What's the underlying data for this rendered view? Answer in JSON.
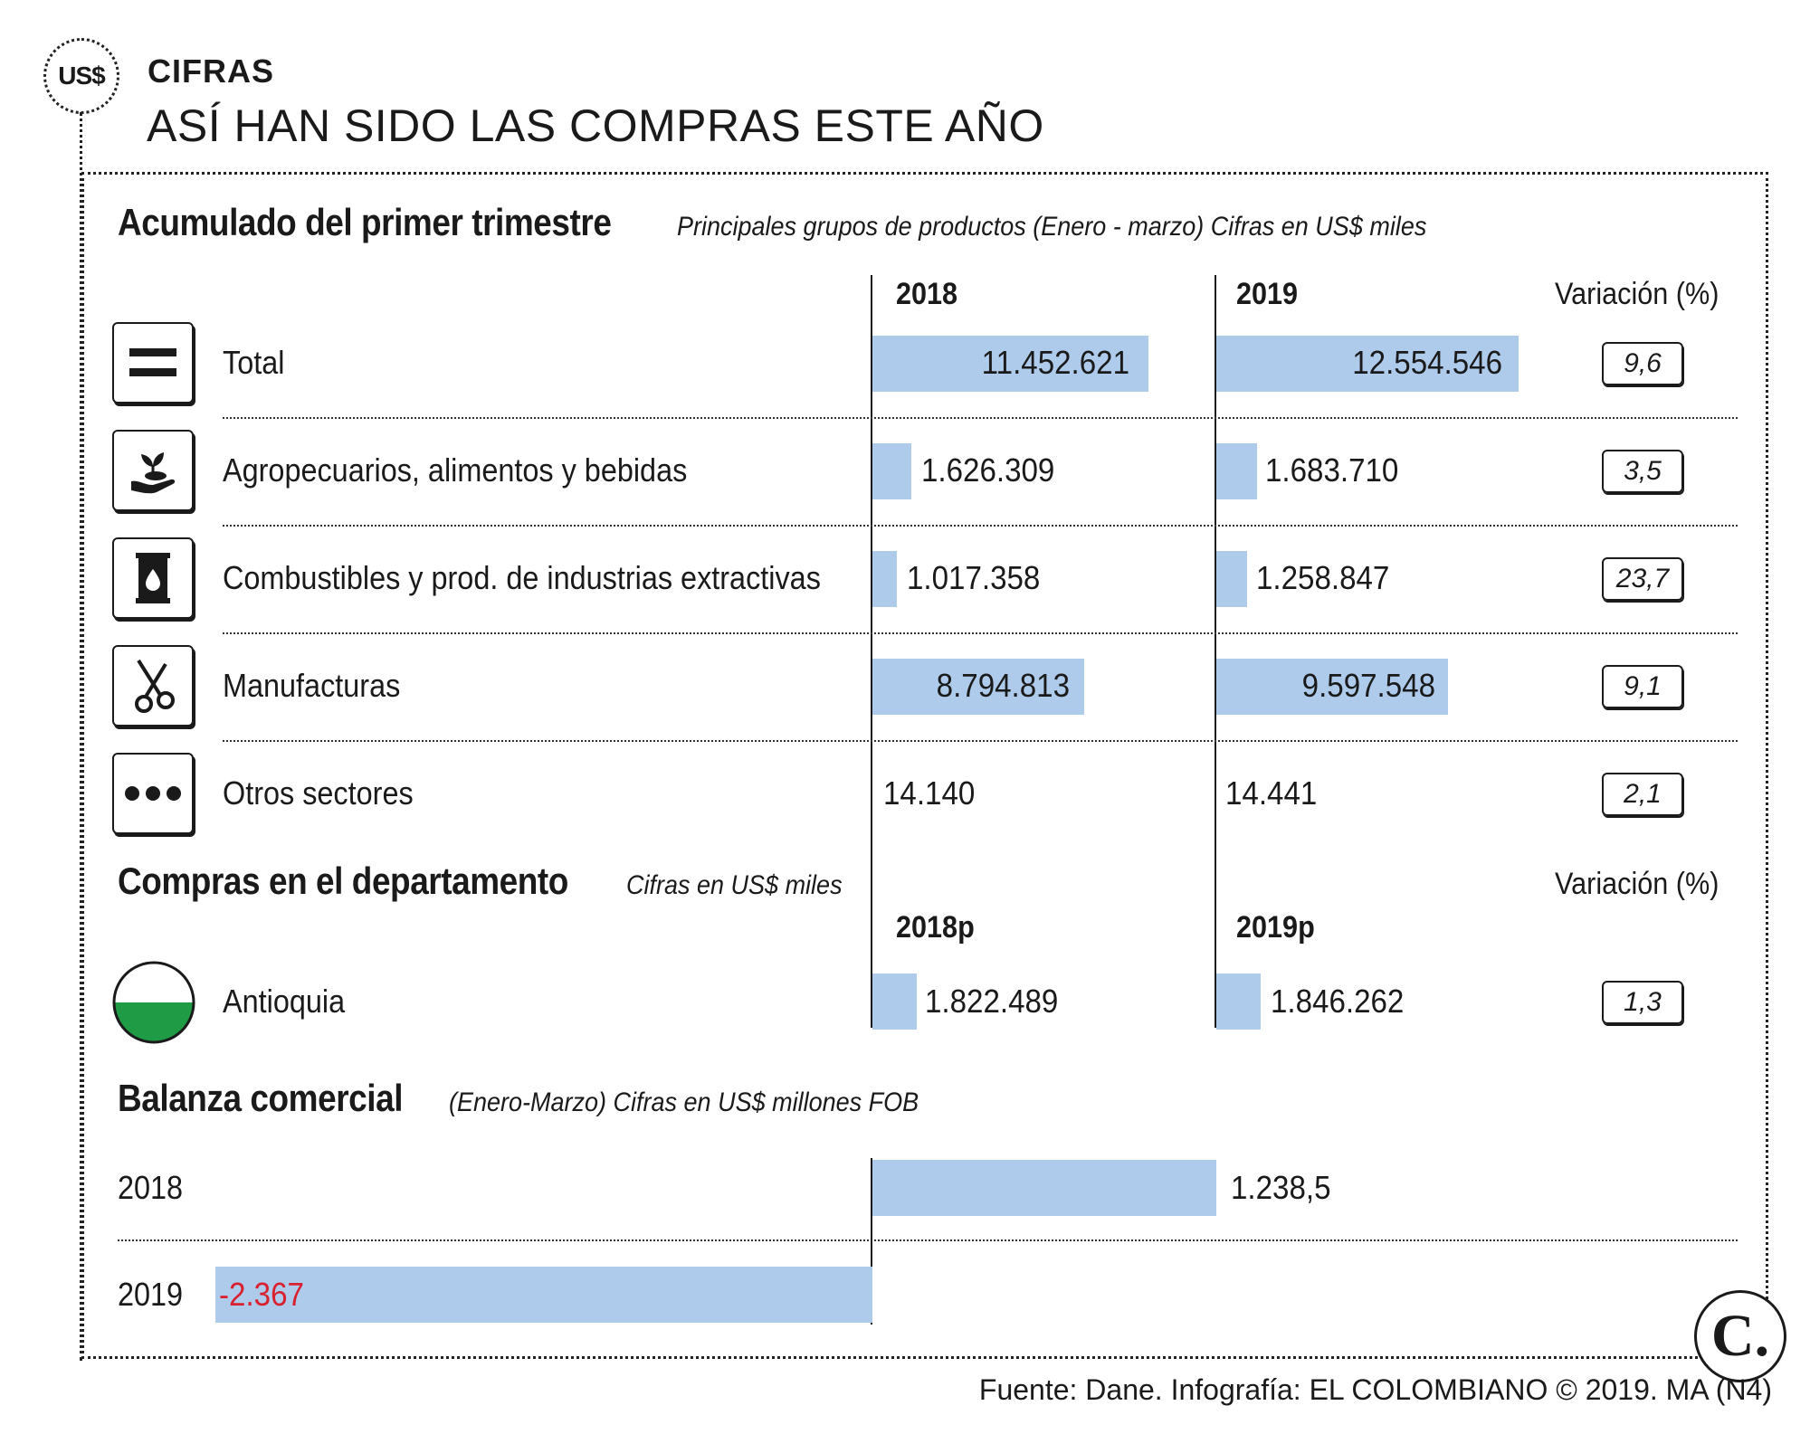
{
  "header": {
    "badge": "US$",
    "kicker": "CIFRAS",
    "headline": "ASÍ HAN SIDO LAS COMPRAS ESTE AÑO"
  },
  "section1": {
    "title": "Acumulado del primer trimestre",
    "subtitle": "Principales grupos de productos (Enero - marzo) Cifras en US$ miles",
    "col_2018": "2018",
    "col_2019": "2019",
    "col_var": "Variación (%)"
  },
  "section2": {
    "title": "Compras en el departamento",
    "subtitle": "Cifras en US$ miles",
    "col_2018": "2018p",
    "col_2019": "2019p",
    "col_var": "Variación (%)"
  },
  "section3": {
    "title": "Balanza comercial",
    "subtitle": "(Enero-Marzo) Cifras en US$ millones FOB"
  },
  "footer": {
    "source": "Fuente: Dane. Infografía: EL COLOMBIANO © 2019. MA (N4)",
    "logo": "C."
  },
  "colors": {
    "bar": "#aecbeb",
    "negative": "#d8202f",
    "antioquia_green": "#1f9a45"
  },
  "chart_data": [
    {
      "type": "table",
      "title": "Acumulado del primer trimestre",
      "columns": [
        "2018",
        "2019",
        "Variación (%)"
      ],
      "rows": [
        {
          "label": "Total",
          "icon": "equals-icon",
          "v2018": 11452621,
          "v2019": 12554546,
          "t2018": "11.452.621",
          "t2019": "12.554.546",
          "var": "9,6"
        },
        {
          "label": "Agropecuarios, alimentos y bebidas",
          "icon": "plant-hand-icon",
          "v2018": 1626309,
          "v2019": 1683710,
          "t2018": "1.626.309",
          "t2019": "1.683.710",
          "var": "3,5"
        },
        {
          "label": "Combustibles y prod. de industrias extractivas",
          "icon": "fuel-barrel-icon",
          "v2018": 1017358,
          "v2019": 1258847,
          "t2018": "1.017.358",
          "t2019": "1.258.847",
          "var": "23,7"
        },
        {
          "label": "Manufacturas",
          "icon": "scissors-icon",
          "v2018": 8794813,
          "v2019": 9597548,
          "t2018": "8.794.813",
          "t2019": "9.597.548",
          "var": "9,1"
        },
        {
          "label": "Otros sectores",
          "icon": "dots-icon",
          "v2018": 14140,
          "v2019": 14441,
          "t2018": "14.140",
          "t2019": "14.441",
          "var": "2,1"
        }
      ]
    },
    {
      "type": "table",
      "title": "Compras en el departamento",
      "columns": [
        "2018p",
        "2019p",
        "Variación (%)"
      ],
      "rows": [
        {
          "label": "Antioquia",
          "icon": "antioquia-flag-icon",
          "v2018": 1822489,
          "v2019": 1846262,
          "t2018": "1.822.489",
          "t2019": "1.846.262",
          "var": "1,3"
        }
      ]
    },
    {
      "type": "bar",
      "title": "Balanza comercial",
      "categories": [
        "2018",
        "2019"
      ],
      "values": [
        1238.5,
        -2367
      ],
      "labels": [
        "1.238,5",
        "-2.367"
      ]
    }
  ]
}
